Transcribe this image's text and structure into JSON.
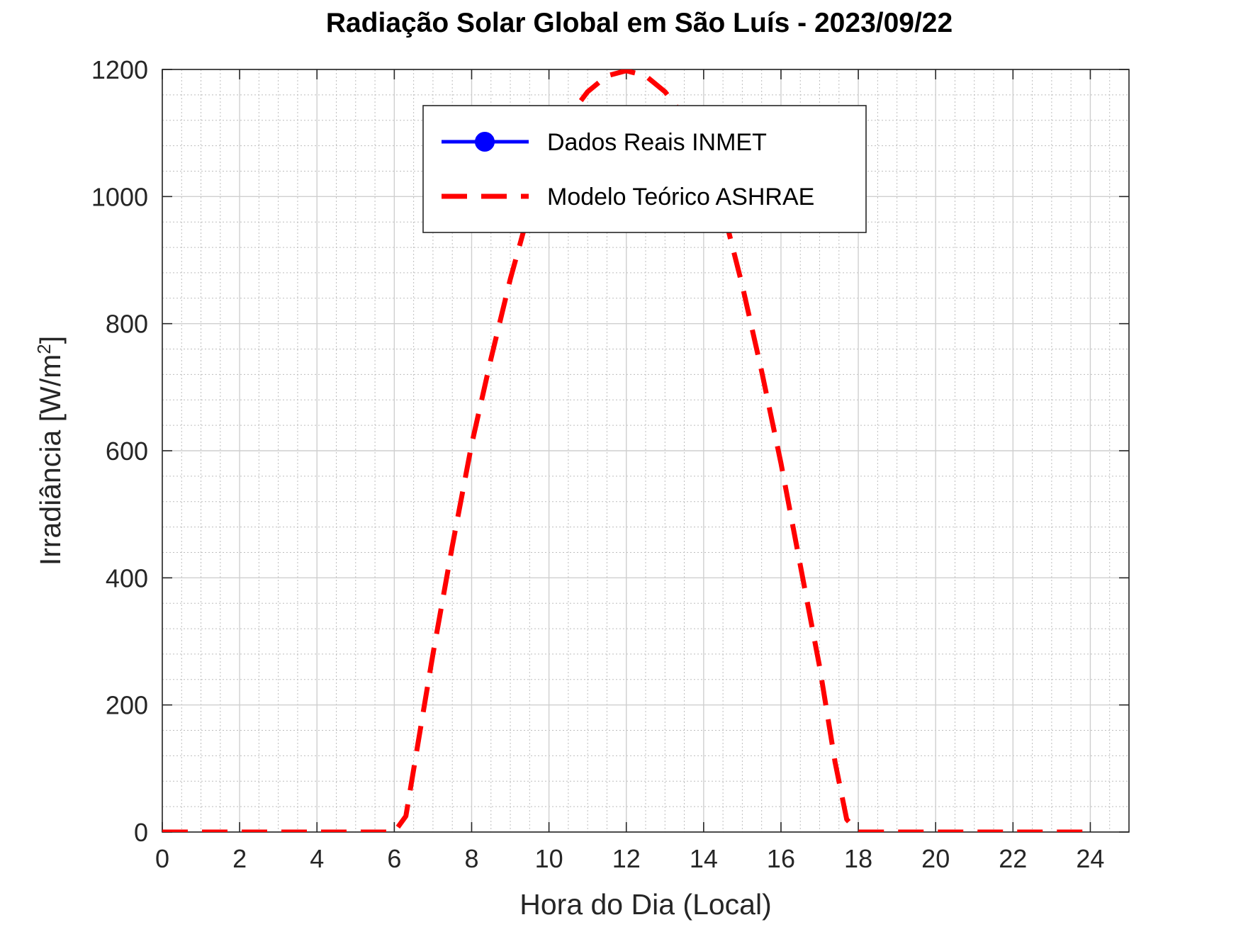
{
  "chart_data": {
    "type": "line",
    "title": "Radiação Solar Global em São Luís - 2023/09/22",
    "xlabel": "Hora do Dia (Local)",
    "ylabel": "Irradiância [W/m",
    "ylabel_superscript": "2",
    "ylabel_suffix": "]",
    "xlim": [
      0,
      25
    ],
    "ylim": [
      0,
      1200
    ],
    "x_ticks": [
      "0",
      "2",
      "4",
      "6",
      "8",
      "10",
      "12",
      "14",
      "16",
      "18",
      "20",
      "22",
      "24"
    ],
    "y_ticks": [
      "0",
      "200",
      "400",
      "600",
      "800",
      "1000",
      "1200"
    ],
    "grid": true,
    "minor_grid": true,
    "legend_position": "top-center",
    "series": [
      {
        "name": "Dados Reais INMET",
        "color": "#0000ff",
        "style": "solid-with-markers",
        "x": [],
        "y": []
      },
      {
        "name": "Modelo Teórico ASHRAE",
        "color": "#ff0000",
        "style": "dashed",
        "x": [
          0,
          1,
          2,
          3,
          4,
          5,
          6,
          6.3,
          6.6,
          7,
          7.5,
          8,
          8.5,
          9,
          9.5,
          10,
          10.5,
          11,
          11.5,
          12,
          12.5,
          13,
          13.5,
          14,
          14.5,
          15,
          15.5,
          16,
          16.5,
          17,
          17.4,
          17.7,
          18,
          19,
          20,
          21,
          22,
          23,
          24
        ],
        "y": [
          0,
          0,
          0,
          0,
          0,
          0,
          0,
          25,
          135,
          280,
          450,
          610,
          745,
          870,
          980,
          1060,
          1125,
          1165,
          1190,
          1198,
          1190,
          1165,
          1125,
          1060,
          980,
          860,
          725,
          580,
          420,
          260,
          110,
          20,
          0,
          0,
          0,
          0,
          0,
          0,
          0
        ]
      }
    ]
  }
}
